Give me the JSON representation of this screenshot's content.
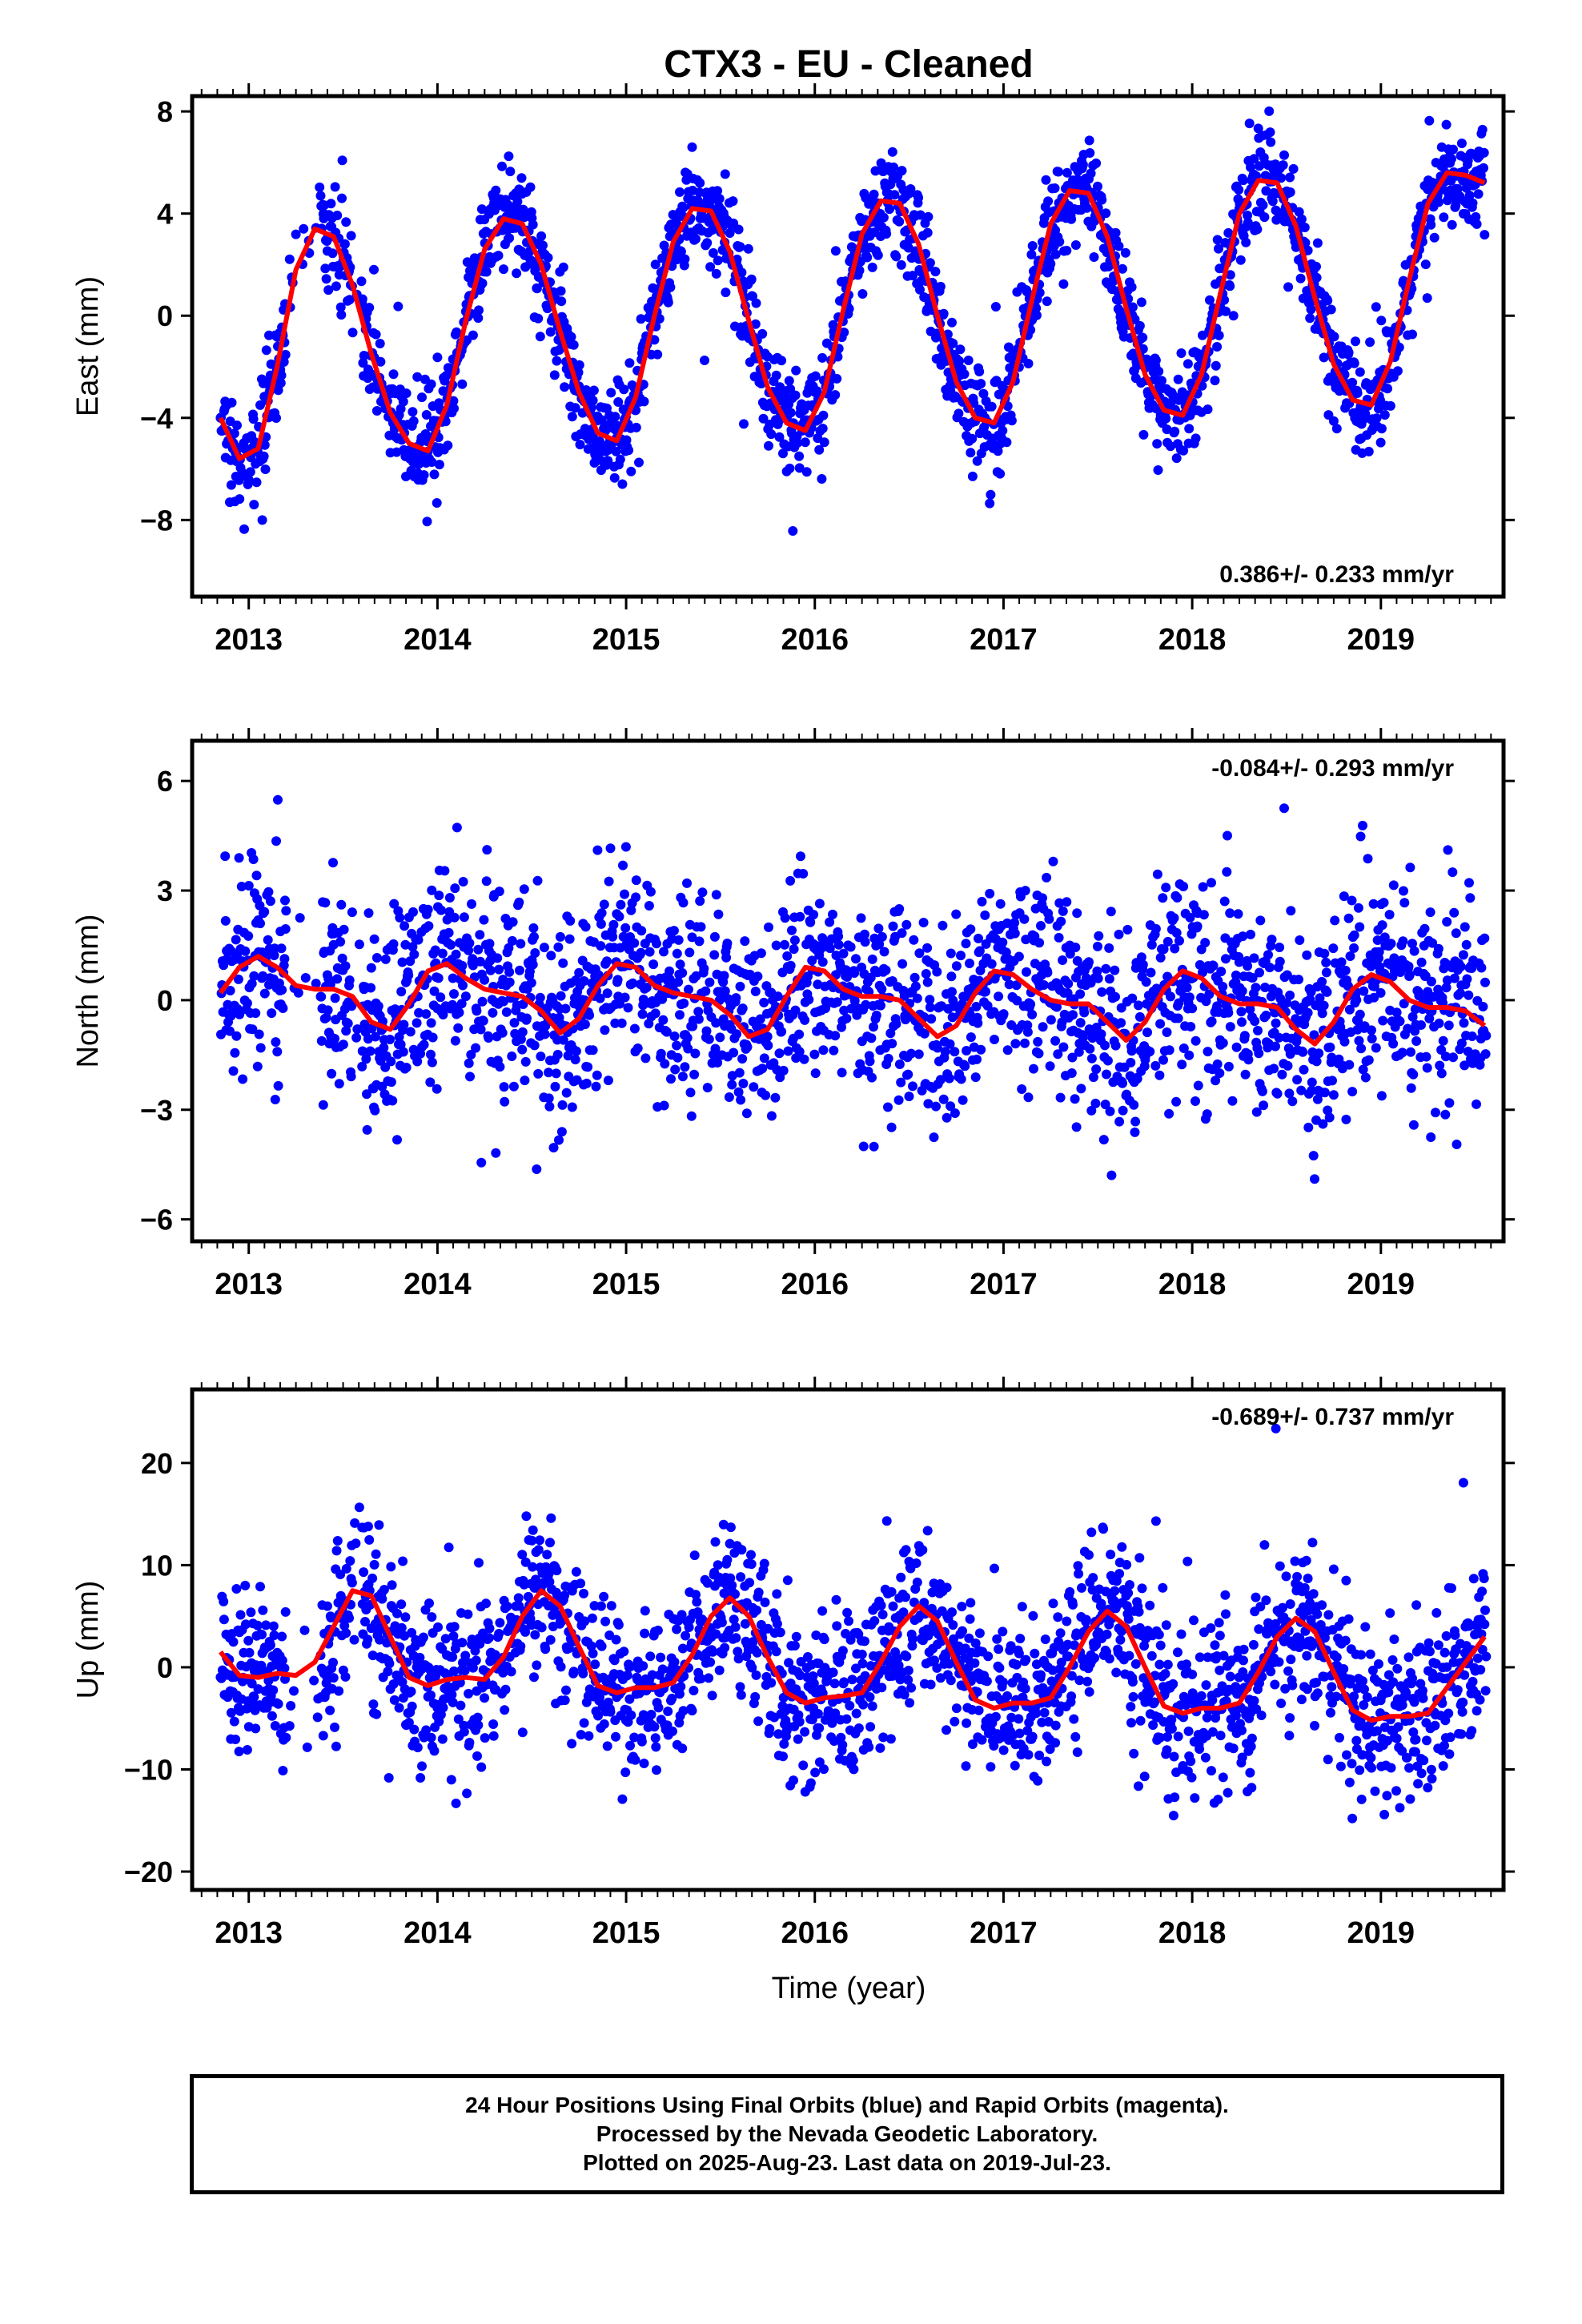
{
  "title": "CTX3  - EU - Cleaned",
  "xlabel": "Time (year)",
  "colors": {
    "points": "#0000ff",
    "fit": "#ff0000",
    "axis": "#000000"
  },
  "footer": {
    "line1": "24 Hour Positions Using Final Orbits (blue) and Rapid Orbits (magenta).",
    "line2": "Processed by the Nevada Geodetic Laboratory.",
    "line3": "Plotted on 2025-Aug-23. Last data on 2019-Jul-23."
  },
  "chart_data": [
    {
      "type": "scatter",
      "ylabel": "East (mm)",
      "rate": "0.386+/- 0.233 mm/yr",
      "rate_position": "bottom-right",
      "xlim": [
        2012.7,
        2019.65
      ],
      "ylim": [
        -11,
        8.6
      ],
      "yticks": [
        -8,
        -4,
        0,
        4,
        8
      ],
      "xticks": [
        2013,
        2014,
        2015,
        2016,
        2017,
        2018,
        2019
      ],
      "data_range": [
        2012.85,
        2019.56
      ],
      "series": [
        {
          "kind": "points",
          "model": {
            "offset": 0.0,
            "trend": 0.386,
            "annual_amp": 4.6,
            "annual_peak": 0.47,
            "semiannual_amp": 0.4,
            "scatter": 1.0
          }
        },
        {
          "kind": "fit-line",
          "x": [
            2012.85,
            2012.95,
            2013.05,
            2013.15,
            2013.25,
            2013.35,
            2013.45,
            2013.55,
            2013.65,
            2013.75,
            2013.85,
            2013.95,
            2014.05,
            2014.15,
            2014.25,
            2014.35,
            2014.45,
            2014.55,
            2014.65,
            2014.75,
            2014.85,
            2014.95,
            2015.05,
            2015.15,
            2015.25,
            2015.35,
            2015.45,
            2015.55,
            2015.65,
            2015.75,
            2015.85,
            2015.95,
            2016.05,
            2016.15,
            2016.25,
            2016.35,
            2016.45,
            2016.55,
            2016.65,
            2016.75,
            2016.85,
            2016.95,
            2017.05,
            2017.15,
            2017.25,
            2017.35,
            2017.45,
            2017.55,
            2017.65,
            2017.75,
            2017.85,
            2017.95,
            2018.05,
            2018.15,
            2018.25,
            2018.35,
            2018.45,
            2018.55,
            2018.65,
            2018.75,
            2018.85,
            2018.95,
            2019.05,
            2019.15,
            2019.25,
            2019.35,
            2019.45,
            2019.55
          ],
          "y": [
            -4.0,
            -5.6,
            -5.2,
            -2.0,
            1.8,
            3.4,
            3.1,
            1.2,
            -1.5,
            -3.8,
            -5.0,
            -5.3,
            -3.5,
            -0.2,
            2.6,
            3.8,
            3.6,
            2.0,
            -0.6,
            -3.0,
            -4.6,
            -4.9,
            -3.2,
            0.0,
            2.9,
            4.2,
            4.1,
            2.5,
            -0.2,
            -2.8,
            -4.2,
            -4.5,
            -3.0,
            0.2,
            3.2,
            4.5,
            4.4,
            2.8,
            0.0,
            -2.6,
            -4.0,
            -4.2,
            -2.6,
            0.6,
            3.6,
            4.9,
            4.8,
            3.1,
            0.3,
            -2.3,
            -3.7,
            -3.9,
            -2.3,
            0.9,
            4.0,
            5.3,
            5.2,
            3.5,
            0.7,
            -1.9,
            -3.3,
            -3.5,
            -1.8,
            1.4,
            4.4,
            5.6,
            5.5,
            5.2
          ]
        }
      ]
    },
    {
      "type": "scatter",
      "ylabel": "North (mm)",
      "rate": "-0.084+/- 0.293 mm/yr",
      "rate_position": "top-right",
      "xlim": [
        2012.7,
        2019.65
      ],
      "ylim": [
        -6.6,
        7.1
      ],
      "yticks": [
        -6,
        -3,
        0,
        3,
        6
      ],
      "xticks": [
        2013,
        2014,
        2015,
        2016,
        2017,
        2018,
        2019
      ],
      "data_range": [
        2012.85,
        2019.56
      ],
      "series": [
        {
          "kind": "points",
          "model": {
            "offset": 0.0,
            "trend": -0.084,
            "annual_amp": 1.0,
            "annual_peak": 0.05,
            "semiannual_amp": 0.3,
            "scatter": 1.4
          }
        },
        {
          "kind": "fit-line",
          "x": [
            2012.85,
            2012.95,
            2013.05,
            2013.15,
            2013.25,
            2013.35,
            2013.45,
            2013.55,
            2013.65,
            2013.75,
            2013.85,
            2013.95,
            2014.05,
            2014.15,
            2014.25,
            2014.35,
            2014.45,
            2014.55,
            2014.65,
            2014.75,
            2014.85,
            2014.95,
            2015.05,
            2015.15,
            2015.25,
            2015.35,
            2015.45,
            2015.55,
            2015.65,
            2015.75,
            2015.85,
            2015.95,
            2016.05,
            2016.15,
            2016.25,
            2016.35,
            2016.45,
            2016.55,
            2016.65,
            2016.75,
            2016.85,
            2016.95,
            2017.05,
            2017.15,
            2017.25,
            2017.35,
            2017.45,
            2017.55,
            2017.65,
            2017.75,
            2017.85,
            2017.95,
            2018.05,
            2018.15,
            2018.25,
            2018.35,
            2018.45,
            2018.55,
            2018.65,
            2018.75,
            2018.85,
            2018.95,
            2019.05,
            2019.15,
            2019.25,
            2019.35,
            2019.45,
            2019.55
          ],
          "y": [
            0.2,
            0.9,
            1.2,
            0.9,
            0.4,
            0.3,
            0.3,
            0.1,
            -0.6,
            -0.8,
            -0.1,
            0.8,
            1.0,
            0.6,
            0.3,
            0.2,
            0.1,
            -0.3,
            -0.9,
            -0.5,
            0.4,
            1.0,
            0.9,
            0.4,
            0.2,
            0.1,
            0.0,
            -0.4,
            -1.0,
            -0.8,
            0.1,
            0.9,
            0.8,
            0.3,
            0.1,
            0.1,
            0.0,
            -0.5,
            -1.0,
            -0.7,
            0.2,
            0.8,
            0.7,
            0.3,
            0.0,
            -0.1,
            -0.1,
            -0.6,
            -1.1,
            -0.6,
            0.3,
            0.8,
            0.6,
            0.1,
            -0.1,
            -0.1,
            -0.2,
            -0.8,
            -1.2,
            -0.6,
            0.3,
            0.7,
            0.5,
            0.0,
            -0.2,
            -0.2,
            -0.3,
            -0.7
          ]
        }
      ]
    },
    {
      "type": "scatter",
      "ylabel": "Up (mm)",
      "rate": "-0.689+/- 0.737 mm/yr",
      "rate_position": "top-right",
      "xlim": [
        2012.7,
        2019.65
      ],
      "ylim": [
        -21.8,
        27.2
      ],
      "yticks": [
        -20,
        -10,
        0,
        10,
        20
      ],
      "xticks": [
        2013,
        2014,
        2015,
        2016,
        2017,
        2018,
        2019
      ],
      "data_range": [
        2012.85,
        2019.56
      ],
      "series": [
        {
          "kind": "points",
          "model": {
            "offset": 0.0,
            "trend": -0.689,
            "annual_amp": 4.5,
            "annual_peak": 0.6,
            "semiannual_amp": 1.2,
            "scatter": 4.0
          }
        },
        {
          "kind": "fit-line",
          "x": [
            2012.85,
            2012.95,
            2013.05,
            2013.15,
            2013.25,
            2013.35,
            2013.45,
            2013.55,
            2013.65,
            2013.75,
            2013.85,
            2013.95,
            2014.05,
            2014.15,
            2014.25,
            2014.35,
            2014.45,
            2014.55,
            2014.65,
            2014.75,
            2014.85,
            2014.95,
            2015.05,
            2015.15,
            2015.25,
            2015.35,
            2015.45,
            2015.55,
            2015.65,
            2015.75,
            2015.85,
            2015.95,
            2016.05,
            2016.15,
            2016.25,
            2016.35,
            2016.45,
            2016.55,
            2016.65,
            2016.75,
            2016.85,
            2016.95,
            2017.05,
            2017.15,
            2017.25,
            2017.35,
            2017.45,
            2017.55,
            2017.65,
            2017.75,
            2017.85,
            2017.95,
            2018.05,
            2018.15,
            2018.25,
            2018.35,
            2018.45,
            2018.55,
            2018.65,
            2018.75,
            2018.85,
            2018.95,
            2019.05,
            2019.15,
            2019.25,
            2019.35,
            2019.45,
            2019.55
          ],
          "y": [
            1.5,
            -0.8,
            -1.0,
            -0.6,
            -0.8,
            0.5,
            4.0,
            7.5,
            7.0,
            3.0,
            -1.0,
            -1.8,
            -1.2,
            -1.0,
            -1.2,
            1.0,
            5.0,
            7.5,
            6.0,
            2.0,
            -1.8,
            -2.5,
            -2.0,
            -2.0,
            -1.5,
            1.2,
            5.0,
            6.8,
            5.0,
            1.0,
            -2.5,
            -3.5,
            -3.0,
            -2.8,
            -2.5,
            0.5,
            4.0,
            6.0,
            4.5,
            0.5,
            -3.2,
            -4.0,
            -3.5,
            -3.5,
            -3.0,
            0.0,
            3.5,
            5.5,
            4.0,
            0.0,
            -3.8,
            -4.5,
            -4.0,
            -4.0,
            -3.5,
            -0.5,
            3.0,
            4.8,
            3.5,
            -0.5,
            -4.2,
            -5.2,
            -4.8,
            -4.8,
            -4.5,
            -2.0,
            0.5,
            3.0
          ]
        }
      ]
    }
  ]
}
